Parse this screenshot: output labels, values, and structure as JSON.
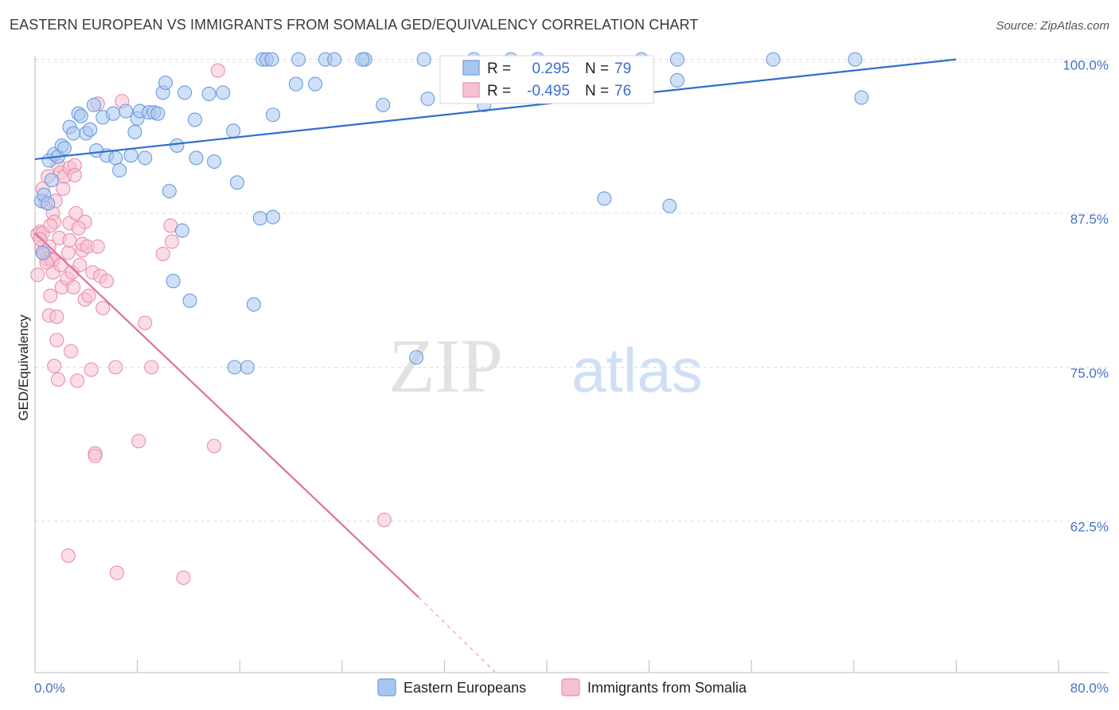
{
  "chart_data": {
    "type": "scatter",
    "title": "EASTERN EUROPEAN VS IMMIGRANTS FROM SOMALIA GED/EQUIVALENCY CORRELATION CHART",
    "source": "Source: ZipAtlas.com",
    "ylabel": "GED/Equivalency",
    "xlabel": "",
    "xlim": [
      0,
      80
    ],
    "ylim": [
      50.2,
      100.3
    ],
    "x_tick_labels": [
      "0.0%",
      "80.0%"
    ],
    "y_ticks": [
      {
        "value": 100.0,
        "label": "100.0%"
      },
      {
        "value": 87.5,
        "label": "87.5%"
      },
      {
        "value": 75.0,
        "label": "75.0%"
      },
      {
        "value": 62.5,
        "label": "62.5%"
      }
    ],
    "watermark": {
      "zip": "ZIP",
      "atlas": "atlas"
    },
    "legend": {
      "r_label": "R =",
      "n_label": "N =",
      "entries": [
        {
          "r": "0.295",
          "n": "79"
        },
        {
          "r": "-0.495",
          "n": "76"
        }
      ]
    },
    "series": [
      {
        "name": "Eastern Europeans",
        "color": "#6a9de0",
        "fill": "#a9c6ef",
        "trend": {
          "x1": 0,
          "y1": 91.9,
          "x2": 72.0,
          "y2": 100.0,
          "color": "#2f6fcd"
        },
        "points": [
          [
            0.5,
            88.5
          ],
          [
            0.6,
            84.3
          ],
          [
            0.7,
            89.0
          ],
          [
            1.0,
            88.3
          ],
          [
            1.1,
            91.8
          ],
          [
            1.3,
            90.2
          ],
          [
            1.5,
            92.3
          ],
          [
            1.8,
            92.1
          ],
          [
            2.1,
            93.0
          ],
          [
            2.3,
            92.8
          ],
          [
            2.7,
            94.5
          ],
          [
            3.0,
            94.0
          ],
          [
            3.4,
            95.6
          ],
          [
            3.6,
            95.4
          ],
          [
            4.0,
            94.0
          ],
          [
            4.3,
            94.3
          ],
          [
            4.6,
            96.3
          ],
          [
            4.8,
            92.6
          ],
          [
            5.3,
            95.3
          ],
          [
            5.6,
            92.2
          ],
          [
            6.1,
            95.6
          ],
          [
            6.3,
            92.0
          ],
          [
            6.6,
            91.0
          ],
          [
            7.1,
            95.8
          ],
          [
            7.5,
            92.2
          ],
          [
            7.8,
            94.1
          ],
          [
            8.0,
            95.2
          ],
          [
            8.2,
            95.8
          ],
          [
            8.9,
            95.7
          ],
          [
            8.6,
            92.0
          ],
          [
            9.3,
            95.7
          ],
          [
            9.6,
            95.6
          ],
          [
            10.0,
            97.3
          ],
          [
            10.2,
            98.1
          ],
          [
            10.5,
            89.3
          ],
          [
            10.8,
            82.0
          ],
          [
            11.1,
            93.0
          ],
          [
            11.5,
            86.1
          ],
          [
            11.7,
            97.3
          ],
          [
            12.1,
            80.4
          ],
          [
            12.6,
            92.0
          ],
          [
            12.5,
            95.1
          ],
          [
            13.6,
            97.2
          ],
          [
            14.0,
            91.7
          ],
          [
            14.7,
            97.3
          ],
          [
            15.5,
            94.2
          ],
          [
            15.6,
            75.0
          ],
          [
            15.8,
            90.0
          ],
          [
            16.6,
            75.0
          ],
          [
            17.1,
            80.1
          ],
          [
            17.6,
            87.1
          ],
          [
            17.8,
            100.0
          ],
          [
            18.1,
            100.0
          ],
          [
            18.5,
            100.0
          ],
          [
            18.6,
            87.2
          ],
          [
            18.6,
            95.5
          ],
          [
            20.6,
            100.0
          ],
          [
            20.4,
            98.0
          ],
          [
            21.9,
            98.0
          ],
          [
            22.7,
            100.0
          ],
          [
            23.4,
            100.0
          ],
          [
            25.8,
            100.0
          ],
          [
            25.6,
            100.0
          ],
          [
            27.2,
            96.3
          ],
          [
            29.8,
            75.8
          ],
          [
            30.4,
            100.0
          ],
          [
            30.7,
            96.8
          ],
          [
            34.3,
            100.0
          ],
          [
            35.1,
            96.3
          ],
          [
            37.2,
            100.0
          ],
          [
            39.3,
            100.0
          ],
          [
            44.5,
            88.7
          ],
          [
            47.4,
            100.0
          ],
          [
            49.6,
            88.1
          ],
          [
            50.2,
            100.0
          ],
          [
            50.2,
            98.3
          ],
          [
            57.7,
            100.0
          ],
          [
            64.1,
            100.0
          ],
          [
            64.6,
            96.9
          ]
        ]
      },
      {
        "name": "Immigrants from Somalia",
        "color": "#e890ad",
        "fill": "#f5c1d2",
        "trend": {
          "x1": 0,
          "y1": 85.9,
          "x2": 30.0,
          "y2": 56.3,
          "color": "#e0709a"
        },
        "trend_dashed": {
          "x1": 30.0,
          "y1": 56.3,
          "x2": 36.0,
          "y2": 50.2
        },
        "points": [
          [
            0.2,
            85.8
          ],
          [
            0.2,
            82.5
          ],
          [
            0.4,
            86.0
          ],
          [
            0.5,
            84.7
          ],
          [
            0.6,
            89.5
          ],
          [
            0.6,
            85.9
          ],
          [
            0.8,
            88.4
          ],
          [
            0.9,
            83.8
          ],
          [
            1.0,
            90.5
          ],
          [
            1.1,
            84.8
          ],
          [
            1.1,
            79.2
          ],
          [
            1.2,
            83.8
          ],
          [
            1.2,
            80.8
          ],
          [
            1.4,
            83.7
          ],
          [
            1.4,
            82.7
          ],
          [
            1.4,
            87.5
          ],
          [
            1.5,
            86.8
          ],
          [
            1.6,
            88.5
          ],
          [
            1.7,
            79.1
          ],
          [
            1.7,
            77.2
          ],
          [
            1.8,
            74.0
          ],
          [
            1.8,
            91.4
          ],
          [
            1.9,
            85.5
          ],
          [
            2.0,
            90.8
          ],
          [
            2.1,
            81.5
          ],
          [
            2.2,
            89.5
          ],
          [
            2.3,
            90.5
          ],
          [
            2.5,
            82.2
          ],
          [
            2.6,
            84.3
          ],
          [
            2.7,
            85.3
          ],
          [
            2.7,
            86.7
          ],
          [
            2.7,
            91.2
          ],
          [
            2.8,
            76.3
          ],
          [
            2.9,
            82.7
          ],
          [
            3.0,
            81.5
          ],
          [
            3.1,
            91.4
          ],
          [
            3.1,
            90.6
          ],
          [
            3.2,
            87.5
          ],
          [
            3.3,
            73.9
          ],
          [
            3.5,
            83.3
          ],
          [
            3.7,
            84.5
          ],
          [
            3.7,
            85.0
          ],
          [
            3.9,
            80.5
          ],
          [
            3.9,
            86.8
          ],
          [
            4.1,
            84.8
          ],
          [
            4.2,
            80.8
          ],
          [
            4.4,
            74.8
          ],
          [
            4.5,
            82.7
          ],
          [
            4.9,
            84.8
          ],
          [
            4.9,
            96.4
          ],
          [
            4.7,
            68.0
          ],
          [
            4.7,
            67.8
          ],
          [
            5.1,
            82.4
          ],
          [
            5.3,
            79.8
          ],
          [
            5.6,
            82.0
          ],
          [
            6.3,
            75.0
          ],
          [
            6.4,
            58.3
          ],
          [
            6.8,
            96.6
          ],
          [
            8.1,
            69.0
          ],
          [
            8.6,
            78.6
          ],
          [
            9.1,
            75.0
          ],
          [
            10.0,
            84.2
          ],
          [
            10.6,
            86.5
          ],
          [
            10.7,
            85.2
          ],
          [
            11.6,
            57.9
          ],
          [
            14.0,
            68.6
          ],
          [
            14.3,
            99.1
          ],
          [
            27.3,
            62.6
          ],
          [
            2.6,
            59.7
          ],
          [
            1.5,
            75.1
          ],
          [
            0.7,
            84.2
          ],
          [
            0.9,
            83.5
          ],
          [
            0.4,
            85.4
          ],
          [
            2.0,
            83.3
          ],
          [
            3.4,
            86.3
          ],
          [
            1.2,
            86.5
          ]
        ]
      }
    ],
    "bottom_legend": [
      "Eastern Europeans",
      "Immigrants from Somalia"
    ]
  }
}
